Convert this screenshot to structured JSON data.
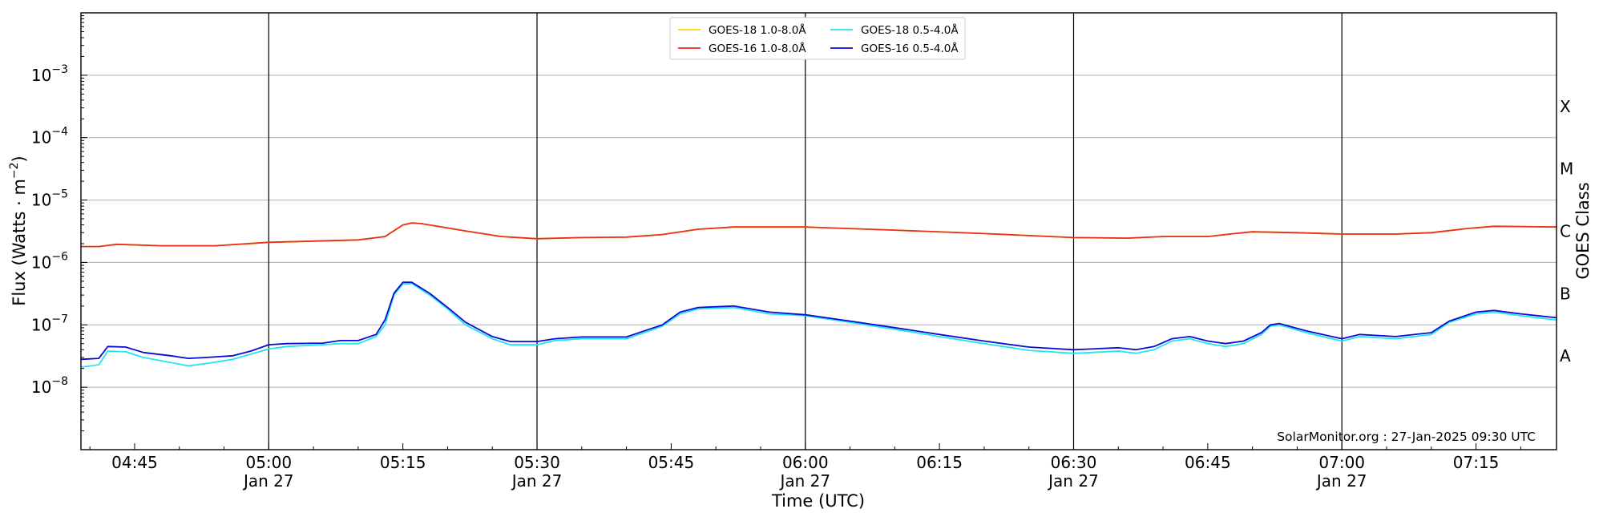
{
  "chart_data": {
    "type": "line",
    "xlabel": "Time (UTC)",
    "ylabel_main": "Flux (Watts · m",
    "ylabel_exp": "−2",
    "ylabel_close": ")",
    "right_label": "GOES Class",
    "credit": "SolarMonitor.org : 27-Jan-2025 09:30 UTC",
    "y_scale": "log",
    "ylim_exp": [
      -9,
      -2
    ],
    "x_range_min": [
      -21,
      144
    ],
    "grid": "horizontal at decades",
    "legend_position": "top-center",
    "y_ticks": [
      {
        "exp": -8,
        "base": "10",
        "sup": "−8"
      },
      {
        "exp": -7,
        "base": "10",
        "sup": "−7"
      },
      {
        "exp": -6,
        "base": "10",
        "sup": "−6"
      },
      {
        "exp": -5,
        "base": "10",
        "sup": "−5"
      },
      {
        "exp": -4,
        "base": "10",
        "sup": "−4"
      },
      {
        "exp": -3,
        "base": "10",
        "sup": "−3"
      }
    ],
    "classes": [
      {
        "label": "A",
        "exp": -7.5
      },
      {
        "label": "B",
        "exp": -6.5
      },
      {
        "label": "C",
        "exp": -5.5
      },
      {
        "label": "M",
        "exp": -4.5
      },
      {
        "label": "X",
        "exp": -3.5
      }
    ],
    "x_ticks": [
      {
        "min": -15,
        "time": "04:45",
        "date": ""
      },
      {
        "min": 0,
        "time": "05:00",
        "date": "Jan 27"
      },
      {
        "min": 15,
        "time": "05:15",
        "date": ""
      },
      {
        "min": 30,
        "time": "05:30",
        "date": "Jan 27"
      },
      {
        "min": 45,
        "time": "05:45",
        "date": ""
      },
      {
        "min": 60,
        "time": "06:00",
        "date": "Jan 27"
      },
      {
        "min": 75,
        "time": "06:15",
        "date": ""
      },
      {
        "min": 90,
        "time": "06:30",
        "date": "Jan 27"
      },
      {
        "min": 105,
        "time": "06:45",
        "date": ""
      },
      {
        "min": 120,
        "time": "07:00",
        "date": "Jan 27"
      },
      {
        "min": 135,
        "time": "07:15",
        "date": ""
      }
    ],
    "day_lines_min": [
      0,
      30,
      60,
      90,
      120
    ],
    "series": [
      {
        "name": "GOES-18 1.0-8.0Å",
        "color": "#ffd700",
        "points": [
          [
            -21,
            1.8e-06
          ],
          [
            -19,
            1.8e-06
          ],
          [
            -17,
            1.95e-06
          ],
          [
            -12,
            1.85e-06
          ],
          [
            -6,
            1.85e-06
          ],
          [
            0,
            2.1e-06
          ],
          [
            5,
            2.2e-06
          ],
          [
            10,
            2.3e-06
          ],
          [
            13,
            2.6e-06
          ],
          [
            15,
            4e-06
          ],
          [
            16,
            4.3e-06
          ],
          [
            17,
            4.2e-06
          ],
          [
            22,
            3.2e-06
          ],
          [
            26,
            2.6e-06
          ],
          [
            30,
            2.4e-06
          ],
          [
            35,
            2.5e-06
          ],
          [
            40,
            2.55e-06
          ],
          [
            44,
            2.8e-06
          ],
          [
            48,
            3.4e-06
          ],
          [
            52,
            3.7e-06
          ],
          [
            60,
            3.7e-06
          ],
          [
            70,
            3.3e-06
          ],
          [
            80,
            2.9e-06
          ],
          [
            90,
            2.5e-06
          ],
          [
            96,
            2.45e-06
          ],
          [
            100,
            2.6e-06
          ],
          [
            105,
            2.6e-06
          ],
          [
            108,
            2.9e-06
          ],
          [
            110,
            3.1e-06
          ],
          [
            115,
            3e-06
          ],
          [
            120,
            2.85e-06
          ],
          [
            126,
            2.85e-06
          ],
          [
            130,
            3e-06
          ],
          [
            134,
            3.5e-06
          ],
          [
            137,
            3.8e-06
          ],
          [
            144,
            3.7e-06
          ]
        ]
      },
      {
        "name": "GOES-16 1.0-8.0Å",
        "color": "#e8301a",
        "points": [
          [
            -21,
            1.8e-06
          ],
          [
            -19,
            1.8e-06
          ],
          [
            -17,
            1.95e-06
          ],
          [
            -12,
            1.85e-06
          ],
          [
            -6,
            1.85e-06
          ],
          [
            0,
            2.1e-06
          ],
          [
            5,
            2.2e-06
          ],
          [
            10,
            2.3e-06
          ],
          [
            13,
            2.6e-06
          ],
          [
            15,
            4e-06
          ],
          [
            16,
            4.3e-06
          ],
          [
            17,
            4.2e-06
          ],
          [
            22,
            3.2e-06
          ],
          [
            26,
            2.6e-06
          ],
          [
            30,
            2.4e-06
          ],
          [
            35,
            2.5e-06
          ],
          [
            40,
            2.55e-06
          ],
          [
            44,
            2.8e-06
          ],
          [
            48,
            3.4e-06
          ],
          [
            52,
            3.7e-06
          ],
          [
            60,
            3.7e-06
          ],
          [
            70,
            3.3e-06
          ],
          [
            80,
            2.9e-06
          ],
          [
            90,
            2.5e-06
          ],
          [
            96,
            2.45e-06
          ],
          [
            100,
            2.6e-06
          ],
          [
            105,
            2.6e-06
          ],
          [
            108,
            2.9e-06
          ],
          [
            110,
            3.1e-06
          ],
          [
            115,
            3e-06
          ],
          [
            120,
            2.85e-06
          ],
          [
            126,
            2.85e-06
          ],
          [
            130,
            3e-06
          ],
          [
            134,
            3.5e-06
          ],
          [
            137,
            3.8e-06
          ],
          [
            144,
            3.7e-06
          ]
        ]
      },
      {
        "name": "GOES-18 0.5-4.0Å",
        "color": "#22e5ee",
        "points": [
          [
            -21,
            2.1e-08
          ],
          [
            -19,
            2.3e-08
          ],
          [
            -18,
            3.8e-08
          ],
          [
            -16,
            3.7e-08
          ],
          [
            -14,
            3e-08
          ],
          [
            -11,
            2.5e-08
          ],
          [
            -9,
            2.2e-08
          ],
          [
            -7,
            2.4e-08
          ],
          [
            -4,
            2.8e-08
          ],
          [
            -2,
            3.4e-08
          ],
          [
            0,
            4.1e-08
          ],
          [
            2,
            4.5e-08
          ],
          [
            6,
            4.8e-08
          ],
          [
            8,
            5e-08
          ],
          [
            10,
            5e-08
          ],
          [
            12,
            6.5e-08
          ],
          [
            13,
            1e-07
          ],
          [
            14,
            3e-07
          ],
          [
            15,
            4.5e-07
          ],
          [
            16,
            4.6e-07
          ],
          [
            18,
            3e-07
          ],
          [
            20,
            1.8e-07
          ],
          [
            22,
            1e-07
          ],
          [
            25,
            6e-08
          ],
          [
            27,
            4.8e-08
          ],
          [
            30,
            4.8e-08
          ],
          [
            32,
            5.6e-08
          ],
          [
            35,
            6e-08
          ],
          [
            40,
            6e-08
          ],
          [
            42,
            7.5e-08
          ],
          [
            44,
            9.5e-08
          ],
          [
            46,
            1.5e-07
          ],
          [
            48,
            1.8e-07
          ],
          [
            52,
            1.9e-07
          ],
          [
            56,
            1.5e-07
          ],
          [
            60,
            1.4e-07
          ],
          [
            65,
            1.1e-07
          ],
          [
            70,
            8.5e-08
          ],
          [
            75,
            6.5e-08
          ],
          [
            80,
            5e-08
          ],
          [
            85,
            3.9e-08
          ],
          [
            90,
            3.5e-08
          ],
          [
            92,
            3.6e-08
          ],
          [
            95,
            3.8e-08
          ],
          [
            97,
            3.5e-08
          ],
          [
            99,
            4e-08
          ],
          [
            101,
            5.5e-08
          ],
          [
            103,
            6e-08
          ],
          [
            105,
            5e-08
          ],
          [
            107,
            4.5e-08
          ],
          [
            109,
            5e-08
          ],
          [
            111,
            7e-08
          ],
          [
            112,
            9.5e-08
          ],
          [
            113,
            1e-07
          ],
          [
            116,
            7.5e-08
          ],
          [
            120,
            5.5e-08
          ],
          [
            122,
            6.5e-08
          ],
          [
            126,
            6e-08
          ],
          [
            130,
            7e-08
          ],
          [
            132,
            1.1e-07
          ],
          [
            135,
            1.5e-07
          ],
          [
            137,
            1.6e-07
          ],
          [
            140,
            1.4e-07
          ],
          [
            144,
            1.2e-07
          ]
        ]
      },
      {
        "name": "GOES-16 0.5-4.0Å",
        "color": "#0a0ad8",
        "points": [
          [
            -21,
            2.8e-08
          ],
          [
            -19,
            2.9e-08
          ],
          [
            -18,
            4.5e-08
          ],
          [
            -16,
            4.4e-08
          ],
          [
            -14,
            3.6e-08
          ],
          [
            -11,
            3.2e-08
          ],
          [
            -9,
            2.9e-08
          ],
          [
            -7,
            3e-08
          ],
          [
            -4,
            3.2e-08
          ],
          [
            -2,
            3.8e-08
          ],
          [
            0,
            4.8e-08
          ],
          [
            2,
            5e-08
          ],
          [
            6,
            5.1e-08
          ],
          [
            8,
            5.6e-08
          ],
          [
            10,
            5.6e-08
          ],
          [
            12,
            7e-08
          ],
          [
            13,
            1.2e-07
          ],
          [
            14,
            3.2e-07
          ],
          [
            15,
            4.8e-07
          ],
          [
            16,
            4.8e-07
          ],
          [
            18,
            3.2e-07
          ],
          [
            20,
            1.9e-07
          ],
          [
            22,
            1.1e-07
          ],
          [
            25,
            6.5e-08
          ],
          [
            27,
            5.4e-08
          ],
          [
            30,
            5.4e-08
          ],
          [
            32,
            6e-08
          ],
          [
            35,
            6.4e-08
          ],
          [
            40,
            6.4e-08
          ],
          [
            42,
            8e-08
          ],
          [
            44,
            1e-07
          ],
          [
            46,
            1.6e-07
          ],
          [
            48,
            1.9e-07
          ],
          [
            52,
            2e-07
          ],
          [
            56,
            1.6e-07
          ],
          [
            60,
            1.45e-07
          ],
          [
            65,
            1.15e-07
          ],
          [
            70,
            9e-08
          ],
          [
            75,
            7e-08
          ],
          [
            80,
            5.5e-08
          ],
          [
            85,
            4.4e-08
          ],
          [
            90,
            4e-08
          ],
          [
            92,
            4.1e-08
          ],
          [
            95,
            4.3e-08
          ],
          [
            97,
            4e-08
          ],
          [
            99,
            4.5e-08
          ],
          [
            101,
            6e-08
          ],
          [
            103,
            6.5e-08
          ],
          [
            105,
            5.5e-08
          ],
          [
            107,
            5e-08
          ],
          [
            109,
            5.5e-08
          ],
          [
            111,
            7.5e-08
          ],
          [
            112,
            1e-07
          ],
          [
            113,
            1.05e-07
          ],
          [
            116,
            8e-08
          ],
          [
            120,
            6e-08
          ],
          [
            122,
            7e-08
          ],
          [
            126,
            6.5e-08
          ],
          [
            130,
            7.5e-08
          ],
          [
            132,
            1.15e-07
          ],
          [
            135,
            1.6e-07
          ],
          [
            137,
            1.7e-07
          ],
          [
            140,
            1.5e-07
          ],
          [
            144,
            1.3e-07
          ]
        ]
      }
    ],
    "legend_order": [
      0,
      2,
      1,
      3
    ]
  }
}
